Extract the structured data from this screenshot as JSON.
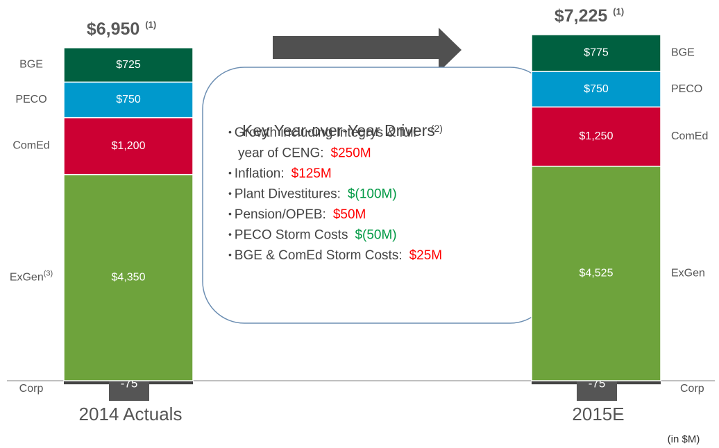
{
  "chart_data": {
    "type": "stacked_bar",
    "categories": [
      "2014 Actuals",
      "2015E"
    ],
    "series": [
      {
        "name": "Corp",
        "color": "#444444",
        "values": [
          -75,
          -75
        ]
      },
      {
        "name": "ExGen",
        "color": "#6ea33c",
        "values": [
          4350,
          4525
        ],
        "value_labels": [
          "$4,350",
          "$4,525"
        ]
      },
      {
        "name": "ComEd",
        "color": "#cc0033",
        "values": [
          1200,
          1250
        ],
        "value_labels": [
          "$1,200",
          "$1,250"
        ]
      },
      {
        "name": "PECO",
        "color": "#0099cc",
        "values": [
          750,
          750
        ],
        "value_labels": [
          "$750",
          "$750"
        ]
      },
      {
        "name": "BGE",
        "color": "#006040",
        "values": [
          725,
          775
        ],
        "value_labels": [
          "$725",
          "$775"
        ]
      }
    ],
    "total_labels": [
      "$6,950",
      "$7,225"
    ],
    "total_note": "(1)",
    "exgen_note": "(3)",
    "units_note": "(in $M)",
    "drivers": {
      "title": "Key Year-over-Year Drivers",
      "note": "(2)",
      "items": [
        {
          "label": [
            "Growth including Integrys & full",
            "year of CENG:"
          ],
          "amount": "$250M",
          "color": "#ff0000"
        },
        {
          "label": "Inflation:",
          "amount": "$125M",
          "color": "#ff0000"
        },
        {
          "label": "Plant Divestitures:",
          "amount": "$(100M)",
          "color": "#009944"
        },
        {
          "label": "Pension/OPEB:",
          "amount": "$50M",
          "color": "#ff0000"
        },
        {
          "label": "PECO Storm Costs",
          "amount": "$(50M)",
          "color": "#009944"
        },
        {
          "label": "BGE & ComEd Storm Costs:",
          "amount": "$25M",
          "color": "#ff0000"
        }
      ]
    }
  }
}
